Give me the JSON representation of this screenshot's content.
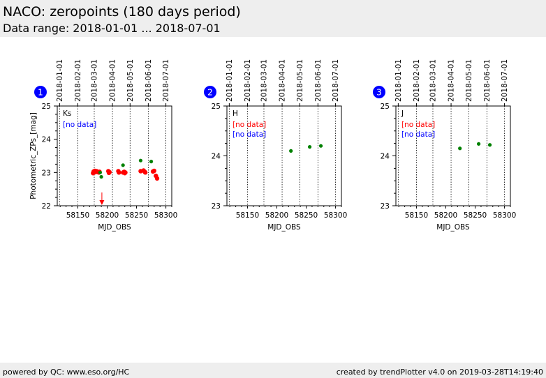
{
  "header": {
    "title": "NACO: zeropoints (180 days period)",
    "subtitle": "Data range: 2018-01-01 ... 2018-07-01"
  },
  "footer": {
    "left": "powered by QC: www.eso.org/HC",
    "right": "created by trendPlotter v4.0 on 2019-03-28T14:19:40"
  },
  "colors": {
    "badge": "#0000ff",
    "ok_points": "#008000",
    "flagged_points": "#ff0000",
    "no_data_red": "#ff0000",
    "no_data_blue": "#0000ff"
  },
  "chart_data": [
    {
      "type": "scatter",
      "panel_number": "1",
      "band": "Ks",
      "no_data_labels": [
        {
          "text": "[no data]",
          "color": "blue"
        }
      ],
      "xlabel": "MJD_OBS",
      "ylabel": "Photometric_ZPs_[mag]",
      "xlim": [
        58115,
        58310
      ],
      "ylim": [
        22,
        25
      ],
      "x_ticks": [
        58150,
        58200,
        58250,
        58300
      ],
      "y_ticks": [
        22,
        23,
        24,
        25
      ],
      "date_ticks": [
        {
          "mjd": 58119,
          "label": "2018-01-01"
        },
        {
          "mjd": 58150,
          "label": "2018-02-01"
        },
        {
          "mjd": 58178,
          "label": "2018-03-01"
        },
        {
          "mjd": 58209,
          "label": "2018-04-01"
        },
        {
          "mjd": 58239,
          "label": "2018-05-01"
        },
        {
          "mjd": 58270,
          "label": "2018-06-01"
        },
        {
          "mjd": 58300,
          "label": "2018-07-01"
        }
      ],
      "series": [
        {
          "name": "good",
          "color": "green",
          "points": [
            [
              58188,
              23.0
            ],
            [
              58190,
              22.87
            ],
            [
              58227,
              23.22
            ],
            [
              58257,
              23.36
            ],
            [
              58275,
              23.33
            ]
          ]
        },
        {
          "name": "flagged",
          "color": "red",
          "points": [
            [
              58176,
              22.98
            ],
            [
              58177,
              23.03
            ],
            [
              58178,
              23.0
            ],
            [
              58179,
              23.05
            ],
            [
              58180,
              23.02
            ],
            [
              58182,
              23.04
            ],
            [
              58184,
              23.01
            ],
            [
              58186,
              23.0
            ],
            [
              58187,
              23.02
            ],
            [
              58202,
              23.04
            ],
            [
              58203,
              22.99
            ],
            [
              58204,
              23.01
            ],
            [
              58219,
              23.04
            ],
            [
              58220,
              23.0
            ],
            [
              58227,
              23.0
            ],
            [
              58229,
              23.02
            ],
            [
              58230,
              22.98
            ],
            [
              58231,
              23.0
            ],
            [
              58257,
              23.04
            ],
            [
              58262,
              23.06
            ],
            [
              58264,
              23.02
            ],
            [
              58265,
              23.0
            ],
            [
              58278,
              23.03
            ],
            [
              58280,
              23.05
            ],
            [
              58283,
              22.9
            ],
            [
              58285,
              22.82
            ]
          ]
        }
      ],
      "outliers": [
        {
          "x": 58191,
          "y": 22.4,
          "direction": "down"
        }
      ]
    },
    {
      "type": "scatter",
      "panel_number": "2",
      "band": "H",
      "no_data_labels": [
        {
          "text": "[no data]",
          "color": "red"
        },
        {
          "text": "[no data]",
          "color": "blue"
        }
      ],
      "xlabel": "MJD_OBS",
      "ylabel": "",
      "xlim": [
        58115,
        58310
      ],
      "ylim": [
        23,
        25
      ],
      "x_ticks": [
        58150,
        58200,
        58250,
        58300
      ],
      "y_ticks": [
        23,
        24,
        25
      ],
      "date_ticks": [
        {
          "mjd": 58119,
          "label": "2018-01-01"
        },
        {
          "mjd": 58150,
          "label": "2018-02-01"
        },
        {
          "mjd": 58178,
          "label": "2018-03-01"
        },
        {
          "mjd": 58209,
          "label": "2018-04-01"
        },
        {
          "mjd": 58239,
          "label": "2018-05-01"
        },
        {
          "mjd": 58270,
          "label": "2018-06-01"
        },
        {
          "mjd": 58300,
          "label": "2018-07-01"
        }
      ],
      "series": [
        {
          "name": "good",
          "color": "green",
          "points": [
            [
              58224,
              24.1
            ],
            [
              58256,
              24.18
            ],
            [
              58275,
              24.2
            ]
          ]
        }
      ],
      "outliers": []
    },
    {
      "type": "scatter",
      "panel_number": "3",
      "band": "J",
      "no_data_labels": [
        {
          "text": "[no data]",
          "color": "red"
        },
        {
          "text": "[no data]",
          "color": "blue"
        }
      ],
      "xlabel": "MJD_OBS",
      "ylabel": "",
      "xlim": [
        58115,
        58310
      ],
      "ylim": [
        23,
        25
      ],
      "x_ticks": [
        58150,
        58200,
        58250,
        58300
      ],
      "y_ticks": [
        23,
        24,
        25
      ],
      "date_ticks": [
        {
          "mjd": 58119,
          "label": "2018-01-01"
        },
        {
          "mjd": 58150,
          "label": "2018-02-01"
        },
        {
          "mjd": 58178,
          "label": "2018-03-01"
        },
        {
          "mjd": 58209,
          "label": "2018-04-01"
        },
        {
          "mjd": 58239,
          "label": "2018-05-01"
        },
        {
          "mjd": 58270,
          "label": "2018-06-01"
        },
        {
          "mjd": 58300,
          "label": "2018-07-01"
        }
      ],
      "series": [
        {
          "name": "good",
          "color": "green",
          "points": [
            [
              58224,
              24.15
            ],
            [
              58256,
              24.24
            ],
            [
              58275,
              24.22
            ]
          ]
        }
      ],
      "outliers": []
    }
  ]
}
